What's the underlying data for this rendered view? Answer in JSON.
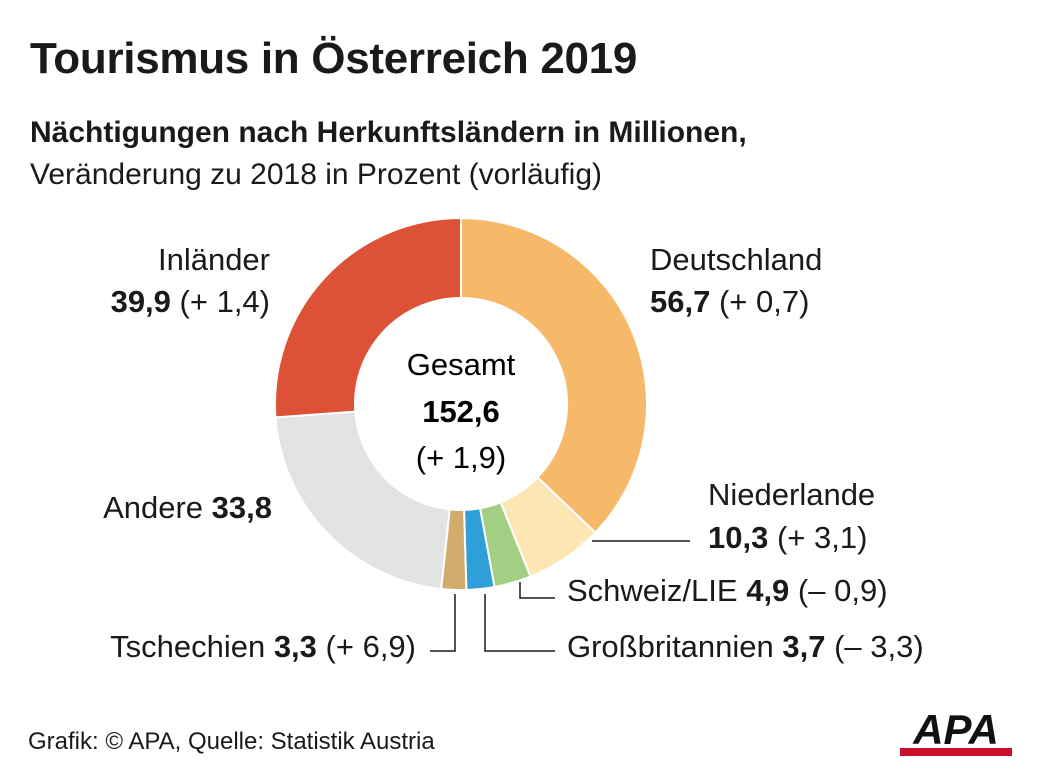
{
  "header": {
    "title": "Tourismus in Österreich 2019",
    "subtitle_bold": "Nächtigungen nach Herkunftsländern in Millionen,",
    "subtitle_regular": "Veränderung zu 2018 in Prozent (vorläufig)"
  },
  "center": {
    "label": "Gesamt",
    "value": "152,6",
    "change": "(+ 1,9)"
  },
  "chart_data": {
    "type": "pie",
    "title": "Tourismus in Österreich 2019",
    "unit": "Nächtigungen in Millionen",
    "total": 152.6,
    "total_change": 1.9,
    "slices": [
      {
        "name": "Deutschland",
        "value": 56.7,
        "change": 0.7,
        "value_label": "56,7",
        "change_label": "(+ 0,7)",
        "color": "#f6b96a"
      },
      {
        "name": "Niederlande",
        "value": 10.3,
        "change": 3.1,
        "value_label": "10,3",
        "change_label": "(+ 3,1)",
        "color": "#fbe6b4"
      },
      {
        "name": "Schweiz/LIE",
        "value": 4.9,
        "change": -0.9,
        "value_label": "4,9",
        "change_label": "(– 0,9)",
        "color": "#a3cf85"
      },
      {
        "name": "Großbritannien",
        "value": 3.7,
        "change": -3.3,
        "value_label": "3,7",
        "change_label": "(– 3,3)",
        "color": "#2f9fd8"
      },
      {
        "name": "Tschechien",
        "value": 3.3,
        "change": 6.9,
        "value_label": "3,3",
        "change_label": "(+ 6,9)",
        "color": "#d2ac6c"
      },
      {
        "name": "Andere",
        "value": 33.8,
        "change": null,
        "value_label": "33,8",
        "change_label": "",
        "color": "#e3e3e3"
      },
      {
        "name": "Inländer",
        "value": 39.9,
        "change": 1.4,
        "value_label": "39,9",
        "change_label": "(+ 1,4)",
        "color": "#dd5236"
      }
    ]
  },
  "footer": {
    "source": "Grafik: © APA, Quelle: Statistik Austria",
    "logo_text": "APA"
  }
}
